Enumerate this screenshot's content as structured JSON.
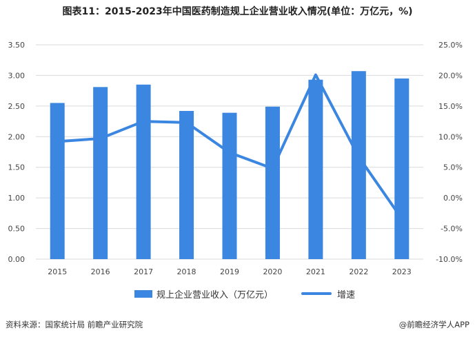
{
  "title": "图表11：2015-2023年中国医药制造规上企业营业收入情况(单位：万亿元，%)",
  "source": "资料来源：国家统计局 前瞻产业研究院",
  "brand": "@前瞻经济学人APP",
  "colors": {
    "bar": "#3a86e0",
    "line": "#3a86e0",
    "grid": "#d9d9d9"
  },
  "chart_data": {
    "type": "bar",
    "categories": [
      "2015",
      "2016",
      "2017",
      "2018",
      "2019",
      "2020",
      "2021",
      "2022",
      "2023"
    ],
    "series": [
      {
        "name": "规上企业营业收入（万亿元）",
        "type": "bar",
        "axis": "left",
        "values": [
          2.55,
          2.81,
          2.85,
          2.42,
          2.39,
          2.49,
          2.93,
          3.07,
          2.95
        ]
      },
      {
        "name": "增速",
        "type": "line",
        "axis": "right",
        "values": [
          9.2,
          9.7,
          12.5,
          12.3,
          7.4,
          4.8,
          20.1,
          6.7,
          -3.4
        ]
      }
    ],
    "y_left": {
      "lim": [
        0,
        3.5
      ],
      "ticks": [
        "0.00",
        "0.50",
        "1.00",
        "1.50",
        "2.00",
        "2.50",
        "3.00",
        "3.50"
      ]
    },
    "y_right": {
      "lim": [
        -10,
        25
      ],
      "ticks": [
        "-10.0%",
        "-5.0%",
        "0.0%",
        "5.0%",
        "10.0%",
        "15.0%",
        "20.0%",
        "25.0%"
      ]
    },
    "grid": true,
    "legend": "bottom"
  }
}
